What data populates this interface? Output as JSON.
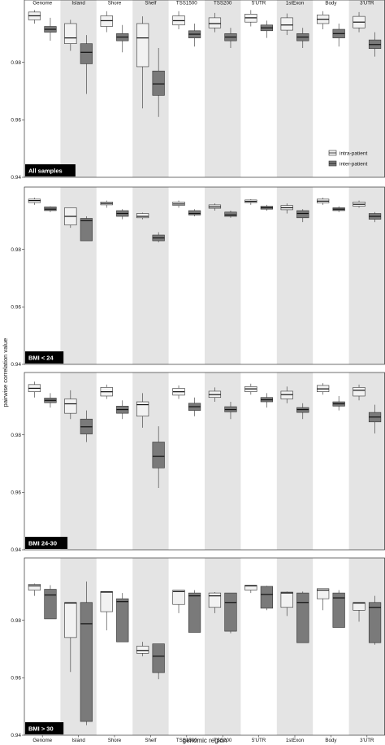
{
  "chart_data": {
    "type": "box",
    "xlabel": "genomic region",
    "ylabel": "pairwise correlation value",
    "ylim": [
      0.94,
      1.0
    ],
    "yticks": [
      "0.94",
      "0.96",
      "0.98"
    ],
    "categories": [
      "Genome",
      "Island",
      "Shore",
      "Shelf",
      "TSS1500",
      "TSS200",
      "5'UTR",
      "1stExon",
      "Body",
      "3'UTR"
    ],
    "shaded_categories": [
      1,
      3,
      5,
      7,
      9
    ],
    "legend": {
      "entries": [
        "intra-patient",
        "inter-patient"
      ],
      "colors": [
        "#f2f2f2",
        "#7a7a7a"
      ],
      "placement": "inside bottom-right of first panel"
    },
    "panels": [
      {
        "label": "All samples",
        "intra": [
          [
            0.9935,
            0.9948,
            0.9962,
            0.9975,
            0.9982
          ],
          [
            0.984,
            0.9865,
            0.9885,
            0.9935,
            0.9948
          ],
          [
            0.9905,
            0.9925,
            0.9945,
            0.9962,
            0.9978
          ],
          [
            0.964,
            0.9785,
            0.9885,
            0.9935,
            0.996
          ],
          [
            0.9915,
            0.993,
            0.9945,
            0.9962,
            0.9978
          ],
          [
            0.9905,
            0.992,
            0.9935,
            0.9955,
            0.9972
          ],
          [
            0.9925,
            0.994,
            0.9955,
            0.9968,
            0.9982
          ],
          [
            0.9895,
            0.9912,
            0.993,
            0.9955,
            0.997
          ],
          [
            0.9915,
            0.9935,
            0.995,
            0.9965,
            0.9978
          ],
          [
            0.9905,
            0.992,
            0.994,
            0.996,
            0.9975
          ]
        ],
        "inter": [
          [
            0.9875,
            0.9905,
            0.9915,
            0.9925,
            0.9955
          ],
          [
            0.969,
            0.9795,
            0.9835,
            0.9865,
            0.9895
          ],
          [
            0.9835,
            0.9875,
            0.9888,
            0.99,
            0.993
          ],
          [
            0.961,
            0.9685,
            0.9725,
            0.977,
            0.985
          ],
          [
            0.9855,
            0.9885,
            0.9898,
            0.991,
            0.9935
          ],
          [
            0.985,
            0.9875,
            0.9888,
            0.99,
            0.992
          ],
          [
            0.9885,
            0.991,
            0.992,
            0.993,
            0.9945
          ],
          [
            0.985,
            0.9875,
            0.9888,
            0.99,
            0.992
          ],
          [
            0.9855,
            0.9885,
            0.99,
            0.9915,
            0.9935
          ],
          [
            0.982,
            0.9848,
            0.9862,
            0.9878,
            0.9905
          ]
        ]
      },
      {
        "label": "BMI < 24",
        "intra": [
          [
            0.9955,
            0.9963,
            0.997,
            0.9975,
            0.998
          ],
          [
            0.9875,
            0.9885,
            0.9915,
            0.9945,
            0.9945
          ],
          [
            0.9945,
            0.9955,
            0.996,
            0.9965,
            0.997
          ],
          [
            0.9905,
            0.991,
            0.9915,
            0.9925,
            0.9928
          ],
          [
            0.9945,
            0.9953,
            0.9958,
            0.9965,
            0.997
          ],
          [
            0.9935,
            0.9943,
            0.9948,
            0.9955,
            0.996
          ],
          [
            0.9955,
            0.9963,
            0.9967,
            0.9972,
            0.9975
          ],
          [
            0.9925,
            0.9938,
            0.9945,
            0.9953,
            0.996
          ],
          [
            0.9955,
            0.9962,
            0.9968,
            0.9975,
            0.998
          ],
          [
            0.9945,
            0.995,
            0.9957,
            0.9965,
            0.997
          ]
        ],
        "inter": [
          [
            0.993,
            0.9935,
            0.994,
            0.9948,
            0.995
          ],
          [
            0.983,
            0.983,
            0.99,
            0.9908,
            0.9915
          ],
          [
            0.9905,
            0.9915,
            0.9925,
            0.9935,
            0.994
          ],
          [
            0.9825,
            0.983,
            0.984,
            0.985,
            0.986
          ],
          [
            0.9915,
            0.992,
            0.9925,
            0.9935,
            0.994
          ],
          [
            0.991,
            0.9915,
            0.992,
            0.993,
            0.9935
          ],
          [
            0.9935,
            0.994,
            0.9945,
            0.995,
            0.9955
          ],
          [
            0.9895,
            0.991,
            0.9925,
            0.9935,
            0.994
          ],
          [
            0.993,
            0.9935,
            0.994,
            0.9945,
            0.995
          ],
          [
            0.9895,
            0.9905,
            0.9915,
            0.9925,
            0.993
          ]
        ]
      },
      {
        "label": "BMI 24-30",
        "intra": [
          [
            0.993,
            0.995,
            0.9962,
            0.9975,
            0.9985
          ],
          [
            0.9855,
            0.9875,
            0.9908,
            0.9925,
            0.9955
          ],
          [
            0.9925,
            0.9935,
            0.995,
            0.9965,
            0.9975
          ],
          [
            0.9825,
            0.9865,
            0.9905,
            0.9915,
            0.9945
          ],
          [
            0.9925,
            0.9938,
            0.995,
            0.9962,
            0.9972
          ],
          [
            0.9915,
            0.993,
            0.994,
            0.9952,
            0.9965
          ],
          [
            0.994,
            0.995,
            0.996,
            0.9968,
            0.9978
          ],
          [
            0.991,
            0.9925,
            0.994,
            0.9952,
            0.9968
          ],
          [
            0.994,
            0.995,
            0.996,
            0.9972,
            0.998
          ],
          [
            0.992,
            0.9935,
            0.9955,
            0.9965,
            0.9975
          ]
        ],
        "inter": [
          [
            0.9895,
            0.9912,
            0.992,
            0.9928,
            0.9945
          ],
          [
            0.9775,
            0.9803,
            0.9828,
            0.9855,
            0.9885
          ],
          [
            0.9855,
            0.9875,
            0.9888,
            0.99,
            0.992
          ],
          [
            0.9615,
            0.9685,
            0.9725,
            0.9775,
            0.983
          ],
          [
            0.9865,
            0.9885,
            0.9898,
            0.991,
            0.993
          ],
          [
            0.9855,
            0.988,
            0.9888,
            0.9898,
            0.9915
          ],
          [
            0.9895,
            0.9915,
            0.9922,
            0.993,
            0.9945
          ],
          [
            0.9855,
            0.9878,
            0.9888,
            0.9895,
            0.991
          ],
          [
            0.9885,
            0.99,
            0.9908,
            0.9915,
            0.9935
          ],
          [
            0.9805,
            0.9845,
            0.9862,
            0.9878,
            0.9905
          ]
        ]
      },
      {
        "label": "BMI > 30",
        "intra": [
          [
            0.9885,
            0.9905,
            0.992,
            0.9925,
            0.9928
          ],
          [
            0.962,
            0.974,
            0.986,
            0.9862,
            0.9862
          ],
          [
            0.9765,
            0.983,
            0.9898,
            0.99,
            0.99
          ],
          [
            0.9675,
            0.9685,
            0.9695,
            0.971,
            0.9725
          ],
          [
            0.9825,
            0.9855,
            0.99,
            0.9905,
            0.9905
          ],
          [
            0.9825,
            0.9845,
            0.9885,
            0.9895,
            0.9898
          ],
          [
            0.9895,
            0.9905,
            0.992,
            0.9922,
            0.9922
          ],
          [
            0.9815,
            0.9845,
            0.9895,
            0.9898,
            0.99
          ],
          [
            0.9835,
            0.9875,
            0.9905,
            0.991,
            0.991
          ],
          [
            0.9795,
            0.9835,
            0.986,
            0.9862,
            0.9862
          ]
        ],
        "inter": [
          [
            0.9865,
            0.9805,
            0.9888,
            0.9908,
            0.9922
          ],
          [
            0.9435,
            0.9448,
            0.9788,
            0.9862,
            0.9935
          ],
          [
            0.9725,
            0.9725,
            0.9865,
            0.9875,
            0.9895
          ],
          [
            0.9595,
            0.9618,
            0.9675,
            0.9718,
            0.9718
          ],
          [
            0.9758,
            0.9758,
            0.9885,
            0.9895,
            0.9905
          ],
          [
            0.9755,
            0.9762,
            0.9862,
            0.9895,
            0.9895
          ],
          [
            0.9835,
            0.9842,
            0.989,
            0.9918,
            0.992
          ],
          [
            0.9722,
            0.9722,
            0.9862,
            0.9895,
            0.99
          ],
          [
            0.9775,
            0.9775,
            0.9878,
            0.9895,
            0.9905
          ],
          [
            0.9715,
            0.9722,
            0.9845,
            0.9862,
            0.9885
          ]
        ]
      }
    ]
  },
  "colors": {
    "intra_fill": "#f2f2f2",
    "inter_fill": "#7a7a7a",
    "shade": "#e4e4e4",
    "box_stroke": "#333333",
    "tag_bg": "#000000"
  }
}
